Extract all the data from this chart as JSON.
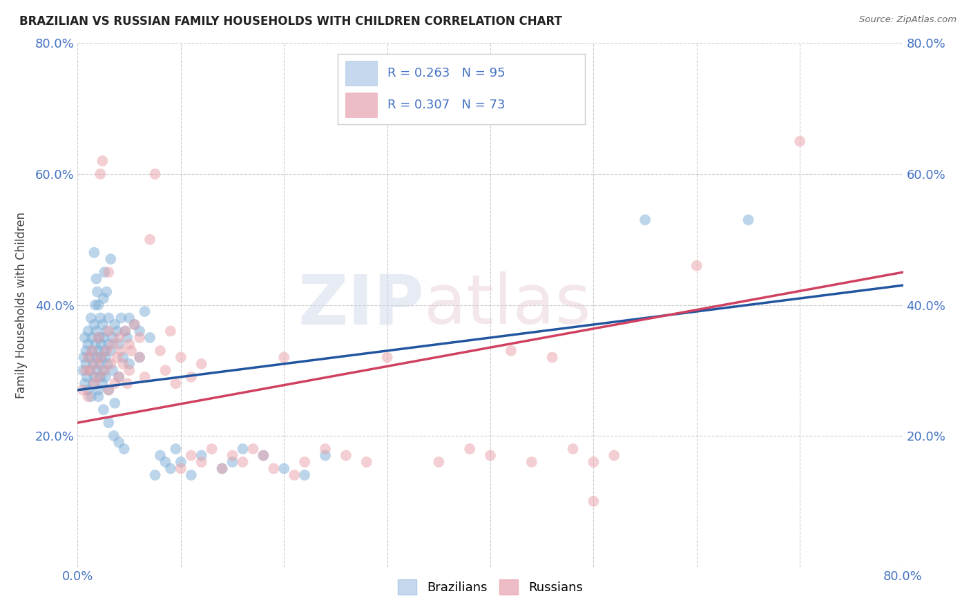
{
  "title": "BRAZILIAN VS RUSSIAN FAMILY HOUSEHOLDS WITH CHILDREN CORRELATION CHART",
  "source": "Source: ZipAtlas.com",
  "ylabel": "Family Households with Children",
  "xlim": [
    0.0,
    0.8
  ],
  "ylim": [
    0.0,
    0.8
  ],
  "yticks": [
    0.0,
    0.2,
    0.4,
    0.6,
    0.8
  ],
  "ytick_labels": [
    "",
    "20.0%",
    "40.0%",
    "60.0%",
    "80.0%"
  ],
  "xticks": [
    0.0,
    0.1,
    0.2,
    0.3,
    0.4,
    0.5,
    0.6,
    0.7,
    0.8
  ],
  "xtick_labels": [
    "0.0%",
    "",
    "",
    "",
    "",
    "",
    "",
    "",
    "80.0%"
  ],
  "watermark": "ZIPatlas",
  "brazil_color": "#7badd6",
  "russia_color": "#e8a0a8",
  "brazil_line_color": "#2255a0",
  "russia_line_color": "#d04060",
  "brazil_scatter": [
    [
      0.005,
      0.3
    ],
    [
      0.006,
      0.32
    ],
    [
      0.007,
      0.28
    ],
    [
      0.007,
      0.35
    ],
    [
      0.008,
      0.31
    ],
    [
      0.008,
      0.33
    ],
    [
      0.009,
      0.29
    ],
    [
      0.01,
      0.34
    ],
    [
      0.01,
      0.27
    ],
    [
      0.01,
      0.36
    ],
    [
      0.012,
      0.32
    ],
    [
      0.012,
      0.3
    ],
    [
      0.013,
      0.38
    ],
    [
      0.013,
      0.26
    ],
    [
      0.014,
      0.33
    ],
    [
      0.014,
      0.35
    ],
    [
      0.015,
      0.28
    ],
    [
      0.015,
      0.31
    ],
    [
      0.016,
      0.37
    ],
    [
      0.016,
      0.29
    ],
    [
      0.017,
      0.34
    ],
    [
      0.017,
      0.4
    ],
    [
      0.018,
      0.32
    ],
    [
      0.018,
      0.36
    ],
    [
      0.019,
      0.3
    ],
    [
      0.02,
      0.33
    ],
    [
      0.02,
      0.27
    ],
    [
      0.021,
      0.35
    ],
    [
      0.021,
      0.31
    ],
    [
      0.022,
      0.38
    ],
    [
      0.022,
      0.29
    ],
    [
      0.023,
      0.34
    ],
    [
      0.023,
      0.32
    ],
    [
      0.024,
      0.37
    ],
    [
      0.024,
      0.28
    ],
    [
      0.025,
      0.35
    ],
    [
      0.025,
      0.41
    ],
    [
      0.025,
      0.3
    ],
    [
      0.026,
      0.33
    ],
    [
      0.026,
      0.45
    ],
    [
      0.027,
      0.32
    ],
    [
      0.027,
      0.29
    ],
    [
      0.028,
      0.36
    ],
    [
      0.028,
      0.42
    ],
    [
      0.029,
      0.31
    ],
    [
      0.03,
      0.34
    ],
    [
      0.03,
      0.38
    ],
    [
      0.03,
      0.27
    ],
    [
      0.032,
      0.33
    ],
    [
      0.032,
      0.47
    ],
    [
      0.034,
      0.35
    ],
    [
      0.034,
      0.3
    ],
    [
      0.036,
      0.37
    ],
    [
      0.036,
      0.25
    ],
    [
      0.038,
      0.36
    ],
    [
      0.04,
      0.34
    ],
    [
      0.04,
      0.29
    ],
    [
      0.042,
      0.38
    ],
    [
      0.044,
      0.32
    ],
    [
      0.046,
      0.36
    ],
    [
      0.048,
      0.35
    ],
    [
      0.05,
      0.38
    ],
    [
      0.05,
      0.31
    ],
    [
      0.055,
      0.37
    ],
    [
      0.06,
      0.36
    ],
    [
      0.06,
      0.32
    ],
    [
      0.065,
      0.39
    ],
    [
      0.07,
      0.35
    ],
    [
      0.075,
      0.14
    ],
    [
      0.08,
      0.17
    ],
    [
      0.085,
      0.16
    ],
    [
      0.09,
      0.15
    ],
    [
      0.095,
      0.18
    ],
    [
      0.1,
      0.16
    ],
    [
      0.11,
      0.14
    ],
    [
      0.12,
      0.17
    ],
    [
      0.14,
      0.15
    ],
    [
      0.15,
      0.16
    ],
    [
      0.16,
      0.18
    ],
    [
      0.18,
      0.17
    ],
    [
      0.2,
      0.15
    ],
    [
      0.22,
      0.14
    ],
    [
      0.24,
      0.17
    ],
    [
      0.016,
      0.48
    ],
    [
      0.018,
      0.44
    ],
    [
      0.019,
      0.42
    ],
    [
      0.02,
      0.4
    ],
    [
      0.55,
      0.53
    ],
    [
      0.65,
      0.53
    ],
    [
      0.02,
      0.26
    ],
    [
      0.025,
      0.24
    ],
    [
      0.03,
      0.22
    ],
    [
      0.035,
      0.2
    ],
    [
      0.04,
      0.19
    ],
    [
      0.045,
      0.18
    ]
  ],
  "russia_scatter": [
    [
      0.005,
      0.27
    ],
    [
      0.008,
      0.3
    ],
    [
      0.01,
      0.26
    ],
    [
      0.01,
      0.32
    ],
    [
      0.012,
      0.3
    ],
    [
      0.014,
      0.33
    ],
    [
      0.016,
      0.28
    ],
    [
      0.018,
      0.31
    ],
    [
      0.02,
      0.29
    ],
    [
      0.02,
      0.35
    ],
    [
      0.022,
      0.32
    ],
    [
      0.022,
      0.6
    ],
    [
      0.024,
      0.62
    ],
    [
      0.026,
      0.3
    ],
    [
      0.028,
      0.33
    ],
    [
      0.03,
      0.36
    ],
    [
      0.03,
      0.27
    ],
    [
      0.032,
      0.31
    ],
    [
      0.034,
      0.34
    ],
    [
      0.036,
      0.28
    ],
    [
      0.038,
      0.32
    ],
    [
      0.04,
      0.35
    ],
    [
      0.04,
      0.29
    ],
    [
      0.042,
      0.33
    ],
    [
      0.044,
      0.31
    ],
    [
      0.046,
      0.36
    ],
    [
      0.048,
      0.28
    ],
    [
      0.05,
      0.34
    ],
    [
      0.05,
      0.3
    ],
    [
      0.052,
      0.33
    ],
    [
      0.055,
      0.37
    ],
    [
      0.06,
      0.32
    ],
    [
      0.06,
      0.35
    ],
    [
      0.065,
      0.29
    ],
    [
      0.07,
      0.5
    ],
    [
      0.075,
      0.6
    ],
    [
      0.08,
      0.33
    ],
    [
      0.085,
      0.3
    ],
    [
      0.09,
      0.36
    ],
    [
      0.095,
      0.28
    ],
    [
      0.1,
      0.32
    ],
    [
      0.1,
      0.15
    ],
    [
      0.11,
      0.17
    ],
    [
      0.11,
      0.29
    ],
    [
      0.12,
      0.16
    ],
    [
      0.12,
      0.31
    ],
    [
      0.13,
      0.18
    ],
    [
      0.14,
      0.15
    ],
    [
      0.15,
      0.17
    ],
    [
      0.16,
      0.16
    ],
    [
      0.17,
      0.18
    ],
    [
      0.18,
      0.17
    ],
    [
      0.19,
      0.15
    ],
    [
      0.2,
      0.32
    ],
    [
      0.21,
      0.14
    ],
    [
      0.22,
      0.16
    ],
    [
      0.24,
      0.18
    ],
    [
      0.26,
      0.17
    ],
    [
      0.28,
      0.16
    ],
    [
      0.3,
      0.32
    ],
    [
      0.35,
      0.16
    ],
    [
      0.38,
      0.18
    ],
    [
      0.4,
      0.17
    ],
    [
      0.42,
      0.33
    ],
    [
      0.44,
      0.16
    ],
    [
      0.46,
      0.32
    ],
    [
      0.48,
      0.18
    ],
    [
      0.5,
      0.1
    ],
    [
      0.5,
      0.16
    ],
    [
      0.52,
      0.17
    ],
    [
      0.6,
      0.46
    ],
    [
      0.7,
      0.65
    ],
    [
      0.03,
      0.45
    ]
  ]
}
